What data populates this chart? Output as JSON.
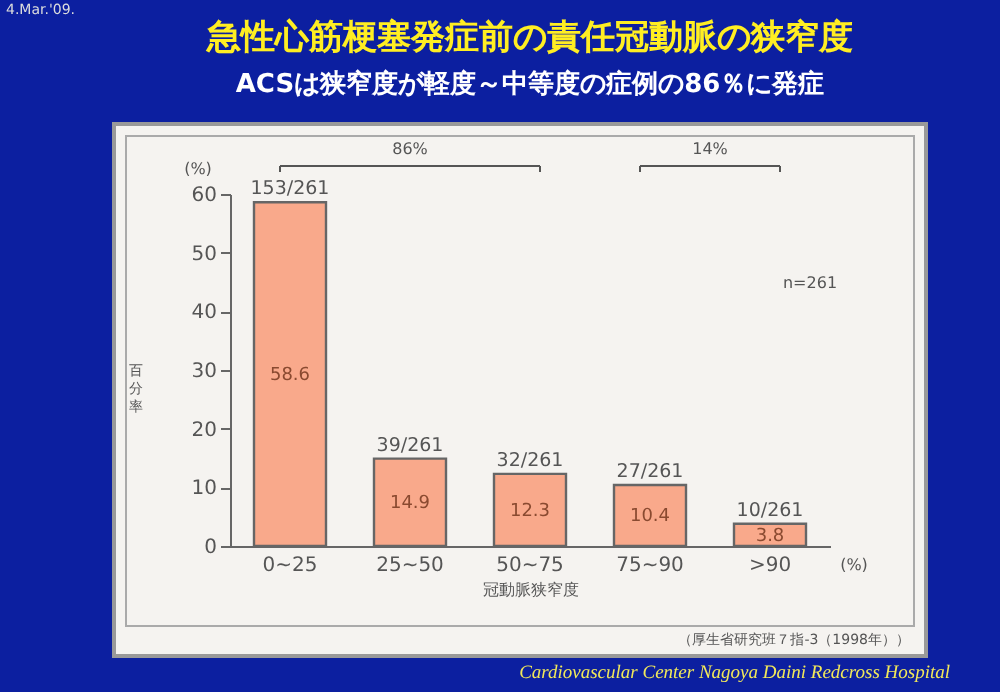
{
  "chart_data": {
    "type": "bar",
    "title": "急性心筋梗塞発症前の責任冠動脈の狭窄度",
    "subtitle": "ACSは狭窄度が軽度～中等度の症例の86％に発症",
    "xlabel": "冠動脈狭窄度",
    "ylabel": "百分率",
    "categories": [
      "0~25",
      "25~50",
      "50~75",
      "75~90",
      ">90"
    ],
    "values": [
      58.6,
      14.9,
      12.3,
      10.4,
      3.8
    ],
    "data_labels": true,
    "color": "#f9a98b",
    "ylim": [
      0,
      60
    ],
    "yticks": [
      0,
      10,
      20,
      30,
      40,
      50,
      60
    ],
    "grid": false,
    "annotations": [
      "4.Mar.'09.",
      "(%)",
      "(%)",
      "86%",
      "14%",
      "n=261",
      "（厚生省研究班７指-3（1998年））",
      "Cardiovascular Center Nagoya Daini Redcross Hospital",
      {
        "text": "153/261",
        "x": "0~25",
        "y": 58.6
      },
      {
        "text": "39/261",
        "x": "25~50",
        "y": 14.9
      },
      {
        "text": "32/261",
        "x": "50~75",
        "y": 12.3
      },
      {
        "text": "27/261",
        "x": "75~90",
        "y": 10.4
      },
      {
        "text": "10/261",
        "x": ">90",
        "y": 3.8
      }
    ]
  }
}
